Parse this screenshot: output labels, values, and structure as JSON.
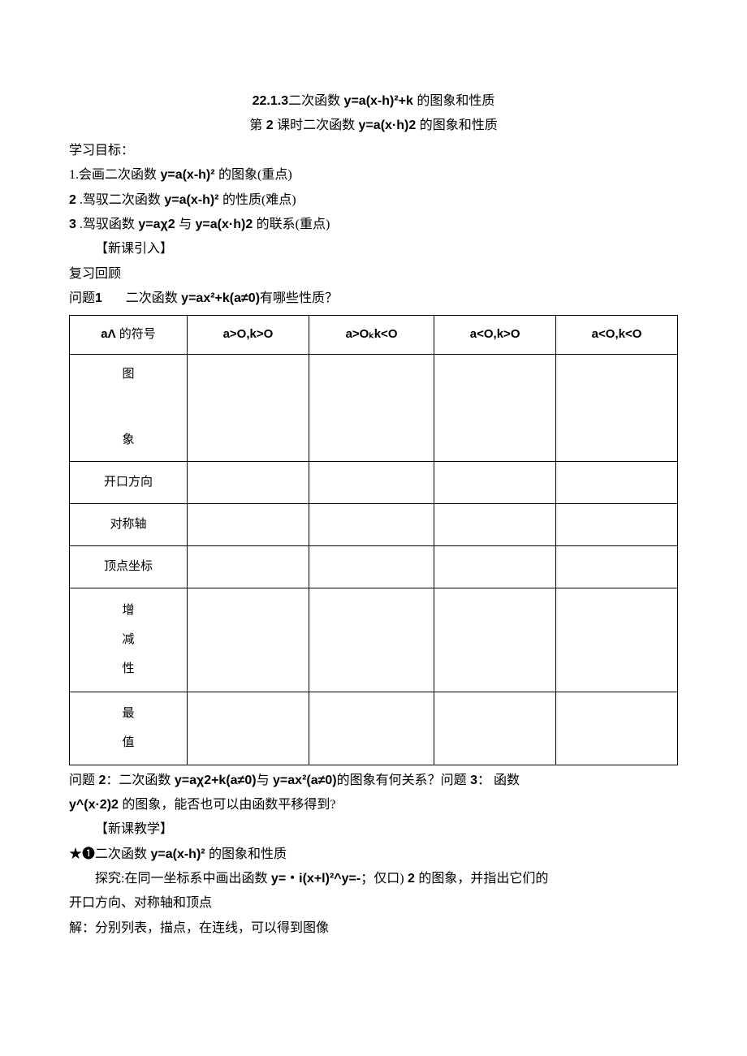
{
  "title": {
    "section_num": "22.1.3",
    "text_a": "二次函数",
    "formula": " y=a(x-h)²+k ",
    "text_b": "的图象和性质"
  },
  "subtitle": {
    "prefix": "第",
    "num": " 2 ",
    "text_a": "课时二次函数",
    "formula": " y=a(x·h)2 ",
    "text_b": "的图象和性质"
  },
  "objectives_header": "学习目标：",
  "obj1": {
    "num": "1.",
    "text_a": "会画二次函数",
    "formula": " y=a(x-h)² ",
    "text_b": "的图象(重点)"
  },
  "obj2": {
    "num": "2",
    "sep": "  .",
    "text_a": "驾驭二次函数",
    "formula": " y=a(x-h)² ",
    "text_b": "的性质(难点)"
  },
  "obj3": {
    "num": "3",
    "sep": "  .",
    "text_a": "驾驭函数",
    "formula_a": " y=aχ2 ",
    "text_b": "与",
    "formula_b": " y=a(x·h)2 ",
    "text_c": "的联系(重点)"
  },
  "new_lesson_intro": "【新课引入】",
  "review_header": "复习回顾",
  "q1": {
    "label": "问题",
    "num": "1",
    "text_a": "二次函数",
    "formula": " y=ax²+k(a≠0)",
    "text_b": "有哪些性质？"
  },
  "table": {
    "columns": [
      {
        "a": "aΛ ",
        "rest": "的符号"
      },
      {
        "a": "a>O,k>O"
      },
      {
        "a": "a>Oₖk<O"
      },
      {
        "a": "a<O,k>O"
      },
      {
        "a": "a<O,k<O"
      }
    ],
    "rows": [
      {
        "label": "图\n\n\n象",
        "class": "row-tall"
      },
      {
        "label": "开口方向",
        "class": "row-med"
      },
      {
        "label": "对称轴",
        "class": "row-med"
      },
      {
        "label": "顶点坐标",
        "class": "row-med"
      },
      {
        "label": "增\n减\n性",
        "class": "row-triple"
      },
      {
        "label": "最\n值",
        "class": "row-double"
      }
    ]
  },
  "q2": {
    "label": "问题",
    "num": " 2",
    "colon": "：",
    "text_a": "二次函数",
    "formula_a": " y=aχ2+k(a≠0)",
    "text_b": "与",
    "formula_b": " y=ax²(a≠0)",
    "text_c": "的图象有何关系？问题",
    "num2": " 3",
    "colon2": "： ",
    "text_d": "函数"
  },
  "q3line2": {
    "formula": "y^(x·2)2 ",
    "text": "的图象，能否也可以由函数平移得到?"
  },
  "new_lesson_teach": "【新课教学】",
  "star_heading": {
    "star": "★❶",
    "text_a": "二次函数",
    "formula": " y=a(x-h)² ",
    "text_b": "的图象和性质"
  },
  "explore": {
    "label": "探究:",
    "text_a": "在同一坐标系中画出函数",
    "formula": " y=・i(x+l)²^y=-",
    "text_b": "；仅口)",
    "num": " 2 ",
    "text_c": "的图象，并指出它们的"
  },
  "explore_line2": "开口方向、对称轴和顶点",
  "solution": "解：分别列表，描点，在连线，可以得到图像",
  "colors": {
    "text": "#000000",
    "background": "#ffffff",
    "border": "#000000"
  }
}
